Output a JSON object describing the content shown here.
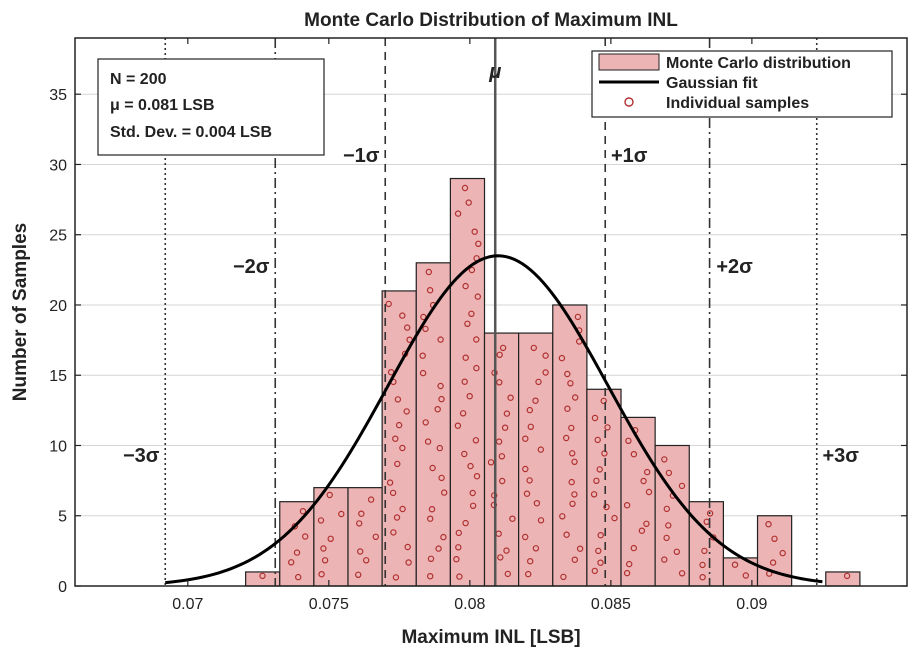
{
  "chart_data": {
    "type": "bar",
    "title": "Monte Carlo Distribution of Maximum INL",
    "xlabel": "Maximum INL [LSB]",
    "ylabel": "Number of Samples",
    "xlim": [
      0.066,
      0.0955
    ],
    "ylim": [
      0,
      39
    ],
    "x_ticks": [
      0.07,
      0.075,
      0.08,
      0.085,
      0.09
    ],
    "x_tick_labels": [
      "0.07",
      "0.075",
      "0.08",
      "0.085",
      "0.09"
    ],
    "y_ticks": [
      0,
      5,
      10,
      15,
      20,
      25,
      30,
      35
    ],
    "y_tick_labels": [
      "0",
      "5",
      "10",
      "15",
      "20",
      "25",
      "30",
      "35"
    ],
    "grid": true,
    "bin_width": 0.00121,
    "bins": [
      {
        "left": 0.07205,
        "count": 1
      },
      {
        "left": 0.07326,
        "count": 6
      },
      {
        "left": 0.07447,
        "count": 7
      },
      {
        "left": 0.07568,
        "count": 7
      },
      {
        "left": 0.07689,
        "count": 21
      },
      {
        "left": 0.0781,
        "count": 23
      },
      {
        "left": 0.07931,
        "count": 29
      },
      {
        "left": 0.08052,
        "count": 18
      },
      {
        "left": 0.08173,
        "count": 18
      },
      {
        "left": 0.08294,
        "count": 20
      },
      {
        "left": 0.08415,
        "count": 14
      },
      {
        "left": 0.08536,
        "count": 12
      },
      {
        "left": 0.08657,
        "count": 10
      },
      {
        "left": 0.08778,
        "count": 6
      },
      {
        "left": 0.08899,
        "count": 2
      },
      {
        "left": 0.0902,
        "count": 5
      },
      {
        "left": 0.09141,
        "count": 0
      },
      {
        "left": 0.09262,
        "count": 1
      }
    ],
    "gaussian_fit": {
      "mean": 0.081,
      "sigma": 0.0039,
      "peak": 23.5,
      "x_range": [
        0.0692,
        0.0925
      ]
    },
    "reference_lines": [
      {
        "value": 0.0809,
        "label": "μ",
        "style": "solid"
      },
      {
        "value": 0.077,
        "label": "−1σ",
        "style": "dashed"
      },
      {
        "value": 0.0848,
        "label": "+1σ",
        "style": "dashed"
      },
      {
        "value": 0.0731,
        "label": "−2σ",
        "style": "dashdot"
      },
      {
        "value": 0.0885,
        "label": "+2σ",
        "style": "dashdot"
      },
      {
        "value": 0.0692,
        "label": "−3σ",
        "style": "dotted"
      },
      {
        "value": 0.0923,
        "label": "+3σ",
        "style": "dotted"
      }
    ],
    "stats_box": [
      "N = 200",
      "μ = 0.081 LSB",
      "Std. Dev. = 0.004 LSB"
    ],
    "legend": {
      "placement": "top-right",
      "entries": [
        "Monte Carlo distribution",
        "Gaussian fit",
        "Individual samples"
      ]
    },
    "colors": {
      "bar_fill": "#ecb4b4",
      "bar_edge": "#222222",
      "sample_marker": "#b03030",
      "fit_line": "#000000",
      "grid": "#d6d6d6"
    }
  }
}
